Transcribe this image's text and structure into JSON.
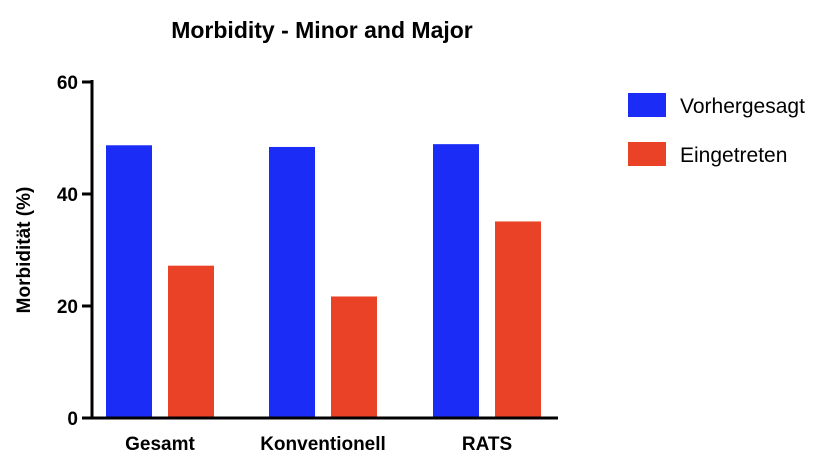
{
  "chart_data": {
    "type": "bar",
    "title": "Morbidity - Minor and Major",
    "xlabel": "",
    "ylabel": "Morbidität (%)",
    "ylim": [
      0,
      60
    ],
    "yticks": [
      "0",
      "20",
      "40",
      "60"
    ],
    "categories": [
      "Gesamt",
      "Konventionell",
      "RATS"
    ],
    "series": [
      {
        "name": "Vorhergesagt",
        "color": "#1a2cf5",
        "values": [
          48.7,
          48.4,
          48.9
        ]
      },
      {
        "name": "Eingetreten",
        "color": "#ea4226",
        "values": [
          27.2,
          21.7,
          35.1
        ]
      }
    ],
    "legend_position": "right",
    "grid": false
  }
}
